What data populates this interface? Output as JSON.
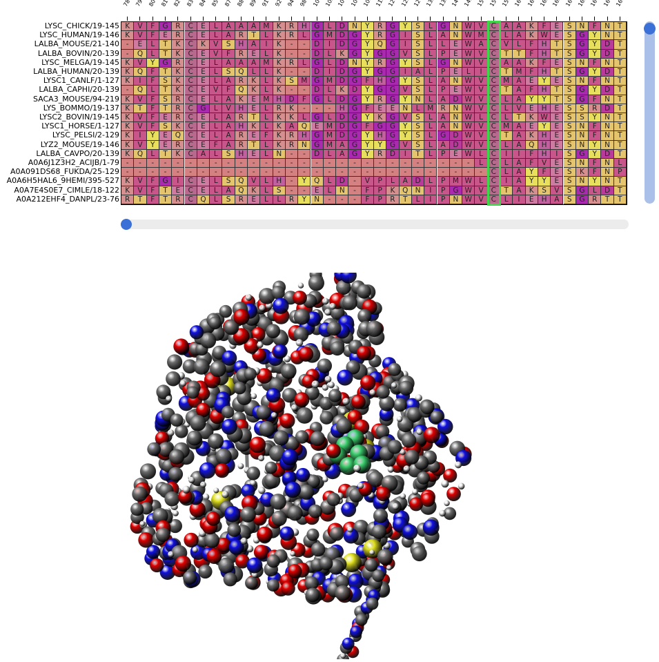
{
  "alignment": {
    "columns": [
      "78",
      "79",
      "80",
      "81",
      "82",
      "83",
      "84",
      "85",
      "87",
      "88",
      "89",
      "91",
      "92",
      "94",
      "98",
      "104",
      "105",
      "106",
      "108",
      "109",
      "112",
      "121",
      "125",
      "127",
      "132",
      "135",
      "140",
      "142",
      "156",
      "157",
      "159",
      "160",
      "161",
      "162",
      "163",
      "164",
      "165",
      "166",
      "167",
      "169"
    ],
    "highlight_column": "157",
    "rows": [
      {
        "name": "LYSC_CHICK/19-145",
        "seq": "KVFGRCELAAAMKRHGLDNYRGYSLGNWVCAAKFESNFNT"
      },
      {
        "name": "LYSC_HUMAN/19-146",
        "seq": "KVFERCELARTLKRLGMDGYRGISLANWMCLAKWESGYNT"
      },
      {
        "name": "LALBA_MOUSE/21-140",
        "seq": "-ELTKCKVSHAIK--DIDGYQGISLLEWACVLFHTSGYDT"
      },
      {
        "name": "LALBA_BOVIN/20-139",
        "seq": "-QLTKCEVFRELK--DLKGYGGVSLPEWVCTTFHTSGYDT"
      },
      {
        "name": "LYSC_MELGA/19-145",
        "seq": "KVYGRCELAAAMKRLGLDNYRGYSLGNWVCAAKFESNFNT"
      },
      {
        "name": "LALBA_HUMAN/20-139",
        "seq": "KQFTKCELSQLLK--DIDGYGGIALPELICTMFHTSGYDT"
      },
      {
        "name": "LYSC1_CANLF/1-127",
        "seq": "KIFSKCELARKLKSMGMDGFHGYSLANWVCMAEYESNFNT"
      },
      {
        "name": "LALBA_CAPHI/20-139",
        "seq": "-QLTKCEVFQKLK--DLKDYGGVSLPEWVCTAFHTSGYDT"
      },
      {
        "name": "SACA3_MOUSE/94-219",
        "seq": "KVFSRCELAKEMHDFGLDGYRGYNLADWVCLAYYTSGFNT"
      },
      {
        "name": "LYS_BOMMO/19-137",
        "seq": "KTFTRCGLVHELRK---HGFEENLMRNWVCLVEHESSRDT"
      },
      {
        "name": "LYSC2_BOVIN/19-145",
        "seq": "KVFERCELARTLKKLGLDGYKGVSLANWLCLTKWESSYNT"
      },
      {
        "name": "LYSC1_HORSE/1-127",
        "seq": "KVFSKCELAHKLKAQEMDGFGGYSLANWVCMAEYESNFNT"
      },
      {
        "name": "LYSC_PELSI/2-129",
        "seq": "KIYEQCELAREFKRHGMDGYHGYSLGDWVCTAKHESNFNT"
      },
      {
        "name": "LYZ2_MOUSE/19-146",
        "seq": "KVYERCEFARTLKRNGMAGYYGVSLADWVCLAQHESNYNT"
      },
      {
        "name": "LALBA_CAVPO/20-139",
        "seq": "KQLTKCALSHELN--DLAGYRDITLPEWLCIIFHISGYDT"
      },
      {
        "name": "A0A6J1Z3H2_ACIJB/1-79",
        "seq": "----------------------------LCLAFVESNFNL"
      },
      {
        "name": "A0A091DS68_FUKDA/25-129",
        "seq": "-----------------------------CLAYFESKFNP"
      },
      {
        "name": "A0A6H5HAL6_9HEMI/395-527",
        "seq": "KVFGICELSQVLH-YQLD-VPLADLPMWLCIAYYESNYNT"
      },
      {
        "name": "A0A7E4S0E7_CIMLE/18-122",
        "seq": "KVFTECELAQKLS--ELN-FPKQNIPGWVCTAKSVSGLDT"
      },
      {
        "name": "A0A212EHF4_DANPL/23-76",
        "seq": "RTFTRCQLSRELLRYN---FPRTLIPNWVCLIEHASGRTT"
      }
    ]
  },
  "colors": {
    "K": "#d68f8f",
    "R": "#d68f8f",
    "H": "#c1609e",
    "D": "#b83b9b",
    "E": "#cf7aa0",
    "G": "#aa2aaf",
    "A": "#c9568a",
    "V": "#c9568a",
    "L": "#c9568a",
    "I": "#c9568a",
    "M": "#c9568a",
    "P": "#c9568a",
    "F": "#c9568a",
    "W": "#c9568a",
    "C": "#b86a8e",
    "S": "#e5c46e",
    "T": "#e5c46e",
    "N": "#e5c46e",
    "Q": "#e5c46e",
    "Y": "#e8e05c",
    "-": "#d68181",
    "highlight": "#3fd64a",
    "scroll_track": "#aac0e8",
    "scroll_thumb": "#3b70d6"
  },
  "viewer": {
    "atom_colors": {
      "carbon": "#6e6e6e",
      "oxygen": "#e00000",
      "nitrogen": "#1010e0",
      "sulfur": "#e0e020",
      "hydrogen": "#f0f0f0",
      "ligand": "#3ccf6e"
    }
  }
}
